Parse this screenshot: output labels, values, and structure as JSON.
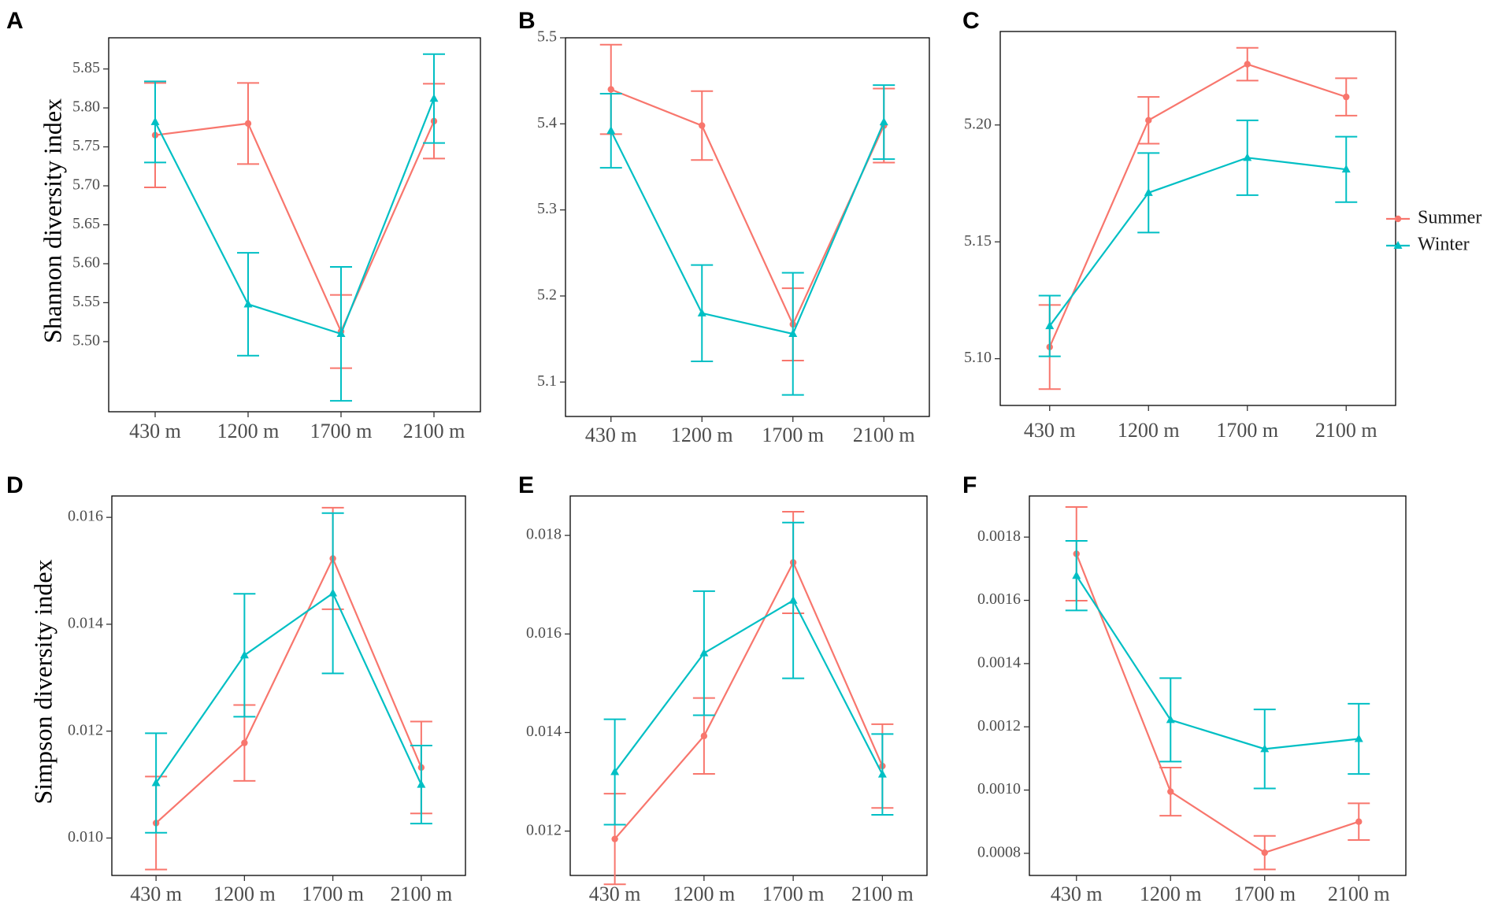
{
  "legend": {
    "items": [
      {
        "name": "Summer",
        "color": "#F8766D",
        "marker": "circle"
      },
      {
        "name": "Winter",
        "color": "#00BFC4",
        "marker": "triangle"
      }
    ]
  },
  "chart_data": [
    {
      "panel": "A",
      "type": "line",
      "categories": [
        "430 m",
        "1200 m",
        "1700 m",
        "2100 m"
      ],
      "ylabel": "Shannon diversity index",
      "ylim": [
        5.41,
        5.89
      ],
      "yticks": [
        5.5,
        5.55,
        5.6,
        5.65,
        5.7,
        5.75,
        5.8,
        5.85
      ],
      "ytick_labels": [
        "5.50",
        "5.55",
        "5.60",
        "5.65",
        "5.70",
        "5.75",
        "5.80",
        "5.85"
      ],
      "series": [
        {
          "name": "Summer",
          "values": [
            5.765,
            5.78,
            5.513,
            5.783
          ],
          "err": [
            0.067,
            0.052,
            0.047,
            0.048
          ]
        },
        {
          "name": "Winter",
          "values": [
            5.782,
            5.548,
            5.51,
            5.812
          ],
          "err": [
            0.052,
            0.066,
            0.086,
            0.057
          ]
        }
      ]
    },
    {
      "panel": "B",
      "type": "line",
      "categories": [
        "430 m",
        "1200 m",
        "1700 m",
        "2100 m"
      ],
      "ylabel": "",
      "ylim": [
        5.06,
        5.5
      ],
      "yticks": [
        5.1,
        5.2,
        5.3,
        5.4,
        5.5
      ],
      "ytick_labels": [
        "5.1",
        "5.2",
        "5.3",
        "5.4",
        "5.5"
      ],
      "series": [
        {
          "name": "Summer",
          "values": [
            5.44,
            5.398,
            5.167,
            5.398
          ],
          "err": [
            0.052,
            0.04,
            0.042,
            0.043
          ]
        },
        {
          "name": "Winter",
          "values": [
            5.392,
            5.18,
            5.156,
            5.402
          ],
          "err": [
            0.043,
            0.056,
            0.071,
            0.043
          ]
        }
      ]
    },
    {
      "panel": "C",
      "type": "line",
      "categories": [
        "430 m",
        "1200 m",
        "1700 m",
        "2100 m"
      ],
      "ylabel": "",
      "ylim": [
        5.08,
        5.24
      ],
      "yticks": [
        5.1,
        5.15,
        5.2
      ],
      "ytick_labels": [
        "5.10",
        "5.15",
        "5.20"
      ],
      "series": [
        {
          "name": "Summer",
          "values": [
            5.105,
            5.202,
            5.226,
            5.212
          ],
          "err": [
            0.018,
            0.01,
            0.007,
            0.008
          ]
        },
        {
          "name": "Winter",
          "values": [
            5.114,
            5.171,
            5.186,
            5.181
          ],
          "err": [
            0.013,
            0.017,
            0.016,
            0.014
          ]
        }
      ]
    },
    {
      "panel": "D",
      "type": "line",
      "categories": [
        "430 m",
        "1200 m",
        "1700 m",
        "2100 m"
      ],
      "ylabel": "Simpson diversity index",
      "ylim": [
        0.0093,
        0.0164
      ],
      "yticks": [
        0.01,
        0.012,
        0.014,
        0.016
      ],
      "ytick_labels": [
        "0.010",
        "0.012",
        "0.014",
        "0.016"
      ],
      "series": [
        {
          "name": "Summer",
          "values": [
            0.01028,
            0.01178,
            0.01523,
            0.01132
          ],
          "err": [
            0.00087,
            0.00071,
            0.00095,
            0.00086
          ]
        },
        {
          "name": "Winter",
          "values": [
            0.01103,
            0.01342,
            0.01458,
            0.011
          ],
          "err": [
            0.00093,
            0.00115,
            0.0015,
            0.00073
          ]
        }
      ]
    },
    {
      "panel": "E",
      "type": "line",
      "categories": [
        "430 m",
        "1200 m",
        "1700 m",
        "2100 m"
      ],
      "ylabel": "",
      "ylim": [
        0.0111,
        0.0188
      ],
      "yticks": [
        0.012,
        0.014,
        0.016,
        0.018
      ],
      "ytick_labels": [
        "0.012",
        "0.014",
        "0.016",
        "0.018"
      ],
      "series": [
        {
          "name": "Summer",
          "values": [
            0.01184,
            0.01393,
            0.01745,
            0.01332
          ],
          "err": [
            0.00092,
            0.00077,
            0.00103,
            0.00085
          ]
        },
        {
          "name": "Winter",
          "values": [
            0.0132,
            0.01561,
            0.01668,
            0.01315
          ],
          "err": [
            0.00107,
            0.00126,
            0.00158,
            0.00082
          ]
        }
      ]
    },
    {
      "panel": "F",
      "type": "line",
      "categories": [
        "430 m",
        "1200 m",
        "1700 m",
        "2100 m"
      ],
      "ylabel": "",
      "ylim": [
        0.00073,
        0.00193
      ],
      "yticks": [
        0.0008,
        0.001,
        0.0012,
        0.0014,
        0.0016,
        0.0018
      ],
      "ytick_labels": [
        "0.0008",
        "0.0010",
        "0.0012",
        "0.0014",
        "0.0016",
        "0.0018"
      ],
      "series": [
        {
          "name": "Summer",
          "values": [
            0.001747,
            0.000995,
            0.000802,
            0.0009
          ],
          "err": [
            0.000148,
            7.6e-05,
            5.3e-05,
            5.8e-05
          ]
        },
        {
          "name": "Winter",
          "values": [
            0.001678,
            0.001222,
            0.00113,
            0.001162
          ],
          "err": [
            0.00011,
            0.000132,
            0.000125,
            0.000111
          ]
        }
      ]
    }
  ]
}
